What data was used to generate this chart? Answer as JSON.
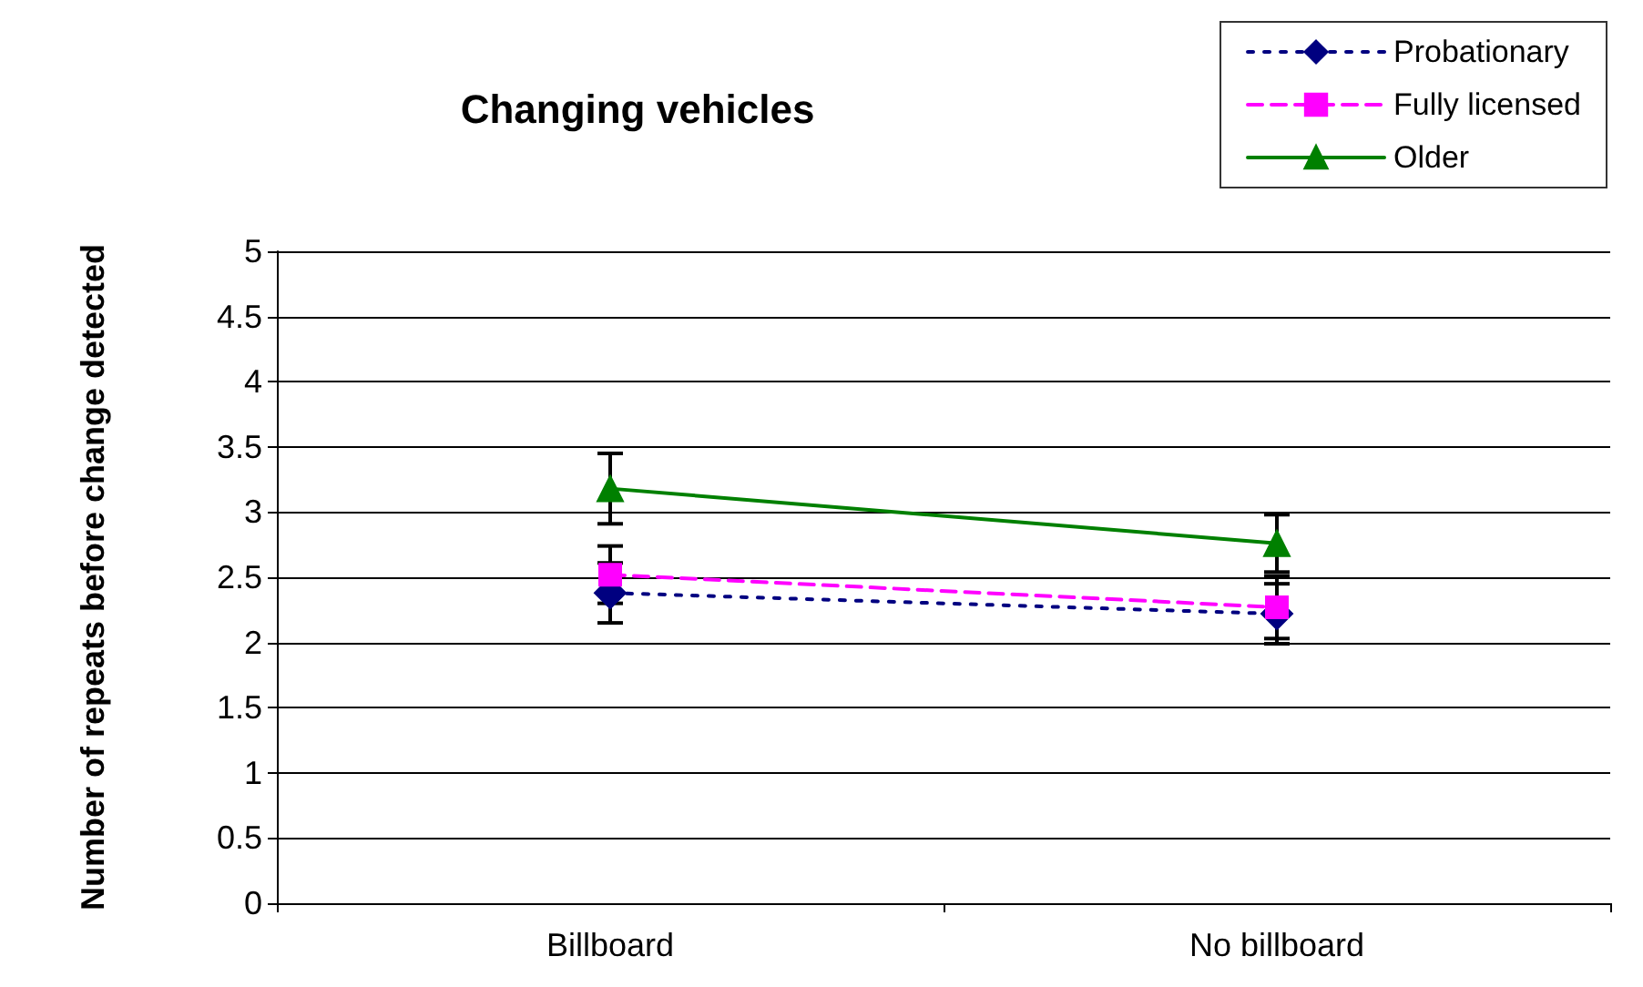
{
  "chart_data": {
    "type": "line",
    "title": "Changing vehicles",
    "ylabel": "Number of repeats before change detected",
    "categories": [
      "Billboard",
      "No billboard"
    ],
    "series": [
      {
        "name": "Probationary",
        "color": "#000080",
        "values": [
          2.38,
          2.22
        ],
        "errors": [
          0.23,
          0.23
        ],
        "marker": "diamond",
        "line_style": "dotted"
      },
      {
        "name": "Fully licensed",
        "color": "#ff00ff",
        "values": [
          2.52,
          2.27
        ],
        "errors": [
          0.22,
          0.24
        ],
        "marker": "square",
        "line_style": "dashed"
      },
      {
        "name": "Older",
        "color": "#008000",
        "values": [
          3.18,
          2.76
        ],
        "errors": [
          0.27,
          0.22
        ],
        "marker": "triangle",
        "line_style": "solid"
      }
    ],
    "ylim": [
      0,
      5
    ],
    "yticks": [
      0,
      0.5,
      1,
      1.5,
      2,
      2.5,
      3,
      3.5,
      4,
      4.5,
      5
    ],
    "grid": "y",
    "legend": "top right"
  }
}
